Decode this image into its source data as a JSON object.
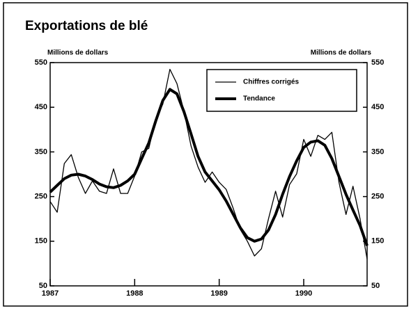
{
  "chart_data": {
    "type": "line",
    "title": "Exportations de blé",
    "ylabel": "Millions de dollars",
    "y2label": "Millions de dollars",
    "x": [
      1987,
      1987.083,
      1987.167,
      1987.25,
      1987.333,
      1987.417,
      1987.5,
      1987.583,
      1987.667,
      1987.75,
      1987.833,
      1987.917,
      1988,
      1988.083,
      1988.167,
      1988.25,
      1988.333,
      1988.417,
      1988.5,
      1988.583,
      1988.667,
      1988.75,
      1988.833,
      1988.917,
      1989,
      1989.083,
      1989.167,
      1989.25,
      1989.333,
      1989.417,
      1989.5,
      1989.583,
      1989.667,
      1989.75,
      1989.833,
      1989.917,
      1990,
      1990.083,
      1990.167,
      1990.25,
      1990.333,
      1990.417,
      1990.5,
      1990.583,
      1990.667,
      1990.75
    ],
    "series": [
      {
        "name": "Chiffres corrigés",
        "color": "#000000",
        "width": 1.3,
        "values": [
          239,
          215,
          324,
          344,
          293,
          257,
          285,
          262,
          257,
          312,
          257,
          257,
          296,
          350,
          358,
          425,
          457,
          535,
          503,
          441,
          363,
          316,
          282,
          305,
          282,
          266,
          223,
          176,
          150,
          117,
          133,
          200,
          262,
          204,
          277,
          301,
          378,
          340,
          387,
          378,
          394,
          282,
          210,
          273,
          200,
          110
        ]
      },
      {
        "name": "Tendance",
        "color": "#000000",
        "width": 4,
        "values": [
          260,
          275,
          290,
          298,
          300,
          296,
          288,
          278,
          272,
          270,
          275,
          285,
          300,
          335,
          370,
          420,
          465,
          490,
          480,
          440,
          390,
          340,
          305,
          285,
          265,
          240,
          210,
          180,
          158,
          150,
          155,
          175,
          210,
          255,
          295,
          330,
          360,
          372,
          375,
          365,
          335,
          295,
          255,
          220,
          185,
          140
        ]
      }
    ],
    "xlim": [
      1987,
      1990.75
    ],
    "xticks": [
      1987,
      1988,
      1989,
      1990
    ],
    "ylim": [
      50,
      550
    ],
    "yticks": [
      50,
      150,
      250,
      350,
      450,
      550
    ],
    "y2lim": [
      50,
      550
    ],
    "y2ticks": [
      50,
      150,
      250,
      350,
      450,
      550
    ],
    "legend": "upper right"
  }
}
